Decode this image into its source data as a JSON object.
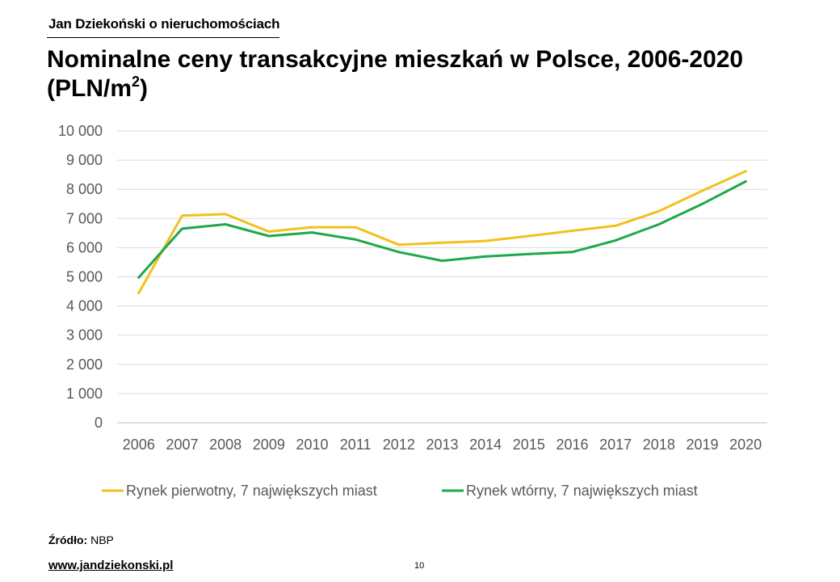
{
  "header": {
    "brand": "Jan Dziekoński o nieruchomościach",
    "title_main": "Nominalne ceny transakcyjne mieszkań w Polsce, 2006-2020",
    "title_unit_prefix": "(PLN/m",
    "title_unit_sup": "2",
    "title_unit_suffix": ")"
  },
  "footer": {
    "source_label": "Źródło:",
    "source_value": "NBP",
    "url": "www.jandziekonski.pl",
    "page_number": "10"
  },
  "chart_data": {
    "type": "line",
    "title": "Nominalne ceny transakcyjne mieszkań w Polsce, 2006-2020 (PLN/m2)",
    "categories": [
      "2006",
      "2007",
      "2008",
      "2009",
      "2010",
      "2011",
      "2012",
      "2013",
      "2014",
      "2015",
      "2016",
      "2017",
      "2018",
      "2019",
      "2020"
    ],
    "ylim": [
      0,
      10000
    ],
    "yticks": [
      0,
      1000,
      2000,
      3000,
      4000,
      5000,
      6000,
      7000,
      8000,
      9000,
      10000
    ],
    "ytick_labels": [
      "0",
      "1 000",
      "2 000",
      "3 000",
      "4 000",
      "5 000",
      "6 000",
      "7 000",
      "8 000",
      "9 000",
      "10 000"
    ],
    "grid": "horizontal",
    "legend_position": "bottom",
    "series": [
      {
        "name": "Rynek pierwotny, 7 największych miast",
        "color": "#F2C01E",
        "values": [
          4450,
          7100,
          7150,
          6550,
          6700,
          6700,
          6100,
          6170,
          6230,
          6400,
          6580,
          6750,
          7250,
          7950,
          8620
        ]
      },
      {
        "name": "Rynek wtórny, 7 największych miast",
        "color": "#1EA84B",
        "values": [
          4980,
          6650,
          6800,
          6400,
          6520,
          6280,
          5850,
          5550,
          5700,
          5780,
          5850,
          6250,
          6800,
          7500,
          8270
        ]
      }
    ]
  }
}
